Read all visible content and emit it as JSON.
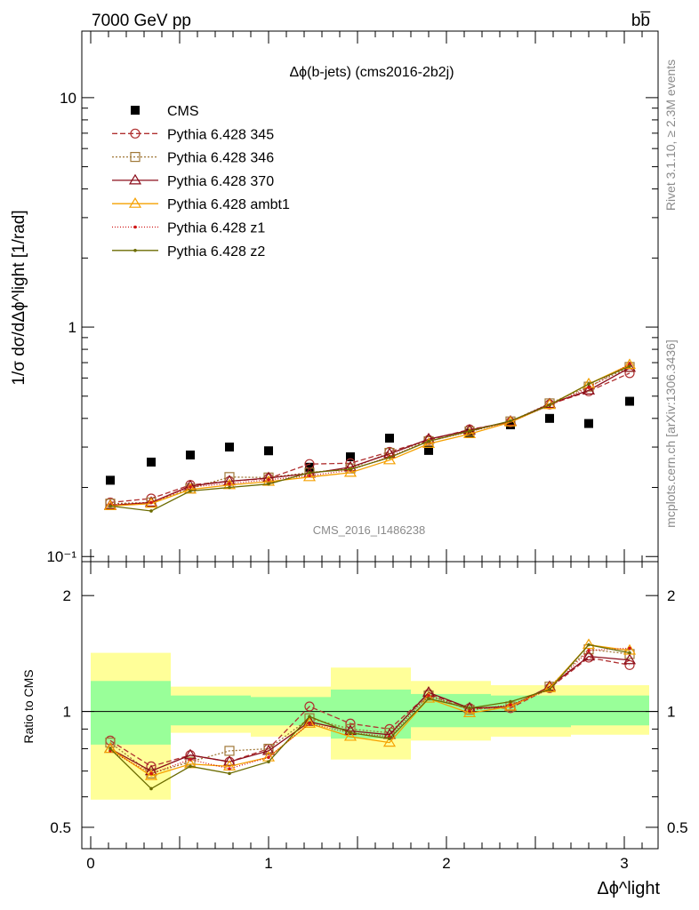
{
  "header": {
    "left": "7000 GeV pp",
    "right": "bb̅"
  },
  "side": {
    "rivet": "Rivet 3.1.10, ≥ 2.3M events",
    "mcplots": "mcplots.cern.ch [arXiv:1306.3436]"
  },
  "chart_data": [
    {
      "type": "scatter",
      "title": "Δϕ(b-jets) (cms2016-2b2j)",
      "ylabel": "1/σ dσ/dΔϕ^light [1/rad]",
      "xlabel": "Δϕ^light",
      "yscale": "log",
      "ylim": [
        0.095,
        19.5
      ],
      "xlim": [
        -0.05,
        3.19
      ],
      "watermark": "CMS_2016_I1486238",
      "y_ticks": [
        "10⁻¹",
        "1",
        "10"
      ],
      "x": [
        0.11,
        0.34,
        0.56,
        0.78,
        1.0,
        1.23,
        1.46,
        1.68,
        1.9,
        2.13,
        2.36,
        2.58,
        2.8,
        3.03
      ],
      "series": [
        {
          "name": "CMS",
          "color": "#000000",
          "marker": "square-filled",
          "values": [
            0.215,
            0.258,
            0.277,
            0.3,
            0.289,
            0.245,
            0.272,
            0.328,
            0.29,
            0.345,
            0.375,
            0.4,
            0.38,
            0.475
          ]
        },
        {
          "name": "Pythia 6.428 345",
          "color": "#b03030",
          "marker": "circle-open",
          "dash": "6,3",
          "values": [
            0.172,
            0.179,
            0.205,
            0.213,
            0.219,
            0.253,
            0.255,
            0.286,
            0.322,
            0.358,
            0.385,
            0.46,
            0.525,
            0.63
          ]
        },
        {
          "name": "Pythia 6.428 346",
          "color": "#a07838",
          "marker": "square-open",
          "dash": "2,2",
          "values": [
            0.17,
            0.172,
            0.198,
            0.222,
            0.221,
            0.232,
            0.242,
            0.283,
            0.318,
            0.351,
            0.388,
            0.465,
            0.55,
            0.67
          ]
        },
        {
          "name": "Pythia 6.428 370",
          "color": "#8b0d1a",
          "marker": "triangle-open",
          "values": [
            0.167,
            0.172,
            0.203,
            0.213,
            0.22,
            0.23,
            0.245,
            0.28,
            0.325,
            0.355,
            0.388,
            0.462,
            0.53,
            0.665
          ]
        },
        {
          "name": "Pythia 6.428 ambt1",
          "color": "#f5a000",
          "marker": "triangle-open",
          "values": [
            0.166,
            0.17,
            0.196,
            0.205,
            0.212,
            0.222,
            0.232,
            0.263,
            0.31,
            0.342,
            0.385,
            0.458,
            0.565,
            0.685
          ]
        },
        {
          "name": "Pythia 6.428 z1",
          "color": "#d01818",
          "marker": "dot",
          "dash": "1,2",
          "values": [
            0.168,
            0.172,
            0.201,
            0.208,
            0.216,
            0.225,
            0.238,
            0.273,
            0.318,
            0.35,
            0.388,
            0.455,
            0.545,
            0.69
          ]
        },
        {
          "name": "Pythia 6.428 z2",
          "color": "#6b6b00",
          "marker": "dot",
          "values": [
            0.166,
            0.158,
            0.193,
            0.2,
            0.207,
            0.232,
            0.24,
            0.27,
            0.318,
            0.352,
            0.39,
            0.457,
            0.565,
            0.675
          ]
        }
      ]
    },
    {
      "type": "line",
      "ylabel": "Ratio to CMS",
      "yscale": "log",
      "ylim": [
        0.44,
        2.45
      ],
      "xlim": [
        -0.05,
        3.19
      ],
      "y_ticks": [
        "0.5",
        "1",
        "2"
      ],
      "x_ticks": [
        "0",
        "1",
        "2",
        "3"
      ],
      "bin_edges": [
        0.0,
        0.45,
        0.9,
        1.35,
        1.8,
        2.25,
        2.7,
        3.14
      ],
      "bands": {
        "outer_color": "#ffff99",
        "inner_color": "#99ff99",
        "outer_lo": [
          0.59,
          0.88,
          0.86,
          0.75,
          0.84,
          0.86,
          0.87
        ],
        "outer_hi": [
          1.42,
          1.16,
          1.16,
          1.3,
          1.2,
          1.17,
          1.17
        ],
        "inner_lo": [
          0.82,
          0.92,
          0.92,
          0.85,
          0.91,
          0.91,
          0.92
        ],
        "inner_hi": [
          1.2,
          1.1,
          1.09,
          1.14,
          1.11,
          1.1,
          1.1
        ]
      },
      "series": [
        {
          "name": "Pythia 6.428 345",
          "values": [
            0.84,
            0.72,
            0.77,
            0.74,
            0.8,
            1.03,
            0.93,
            0.9,
            1.11,
            1.02,
            1.02,
            1.15,
            1.38,
            1.32
          ]
        },
        {
          "name": "Pythia 6.428 346",
          "values": [
            0.83,
            0.69,
            0.74,
            0.79,
            0.8,
            0.96,
            0.9,
            0.88,
            1.1,
            1.01,
            1.03,
            1.16,
            1.45,
            1.41
          ]
        },
        {
          "name": "Pythia 6.428 370",
          "values": [
            0.8,
            0.7,
            0.77,
            0.74,
            0.79,
            0.94,
            0.89,
            0.87,
            1.12,
            1.02,
            1.03,
            1.16,
            1.39,
            1.36
          ]
        },
        {
          "name": "Pythia 6.428 ambt1",
          "values": [
            0.8,
            0.68,
            0.73,
            0.72,
            0.76,
            0.93,
            0.86,
            0.83,
            1.08,
            0.99,
            1.03,
            1.15,
            1.49,
            1.44
          ]
        },
        {
          "name": "Pythia 6.428 z1",
          "values": [
            0.79,
            0.69,
            0.75,
            0.71,
            0.76,
            0.93,
            0.88,
            0.86,
            1.1,
            1.01,
            1.04,
            1.14,
            1.44,
            1.46
          ]
        },
        {
          "name": "Pythia 6.428 z2",
          "values": [
            0.8,
            0.63,
            0.72,
            0.69,
            0.74,
            0.97,
            0.88,
            0.85,
            1.08,
            1.02,
            1.06,
            1.14,
            1.49,
            1.42
          ]
        }
      ]
    }
  ]
}
